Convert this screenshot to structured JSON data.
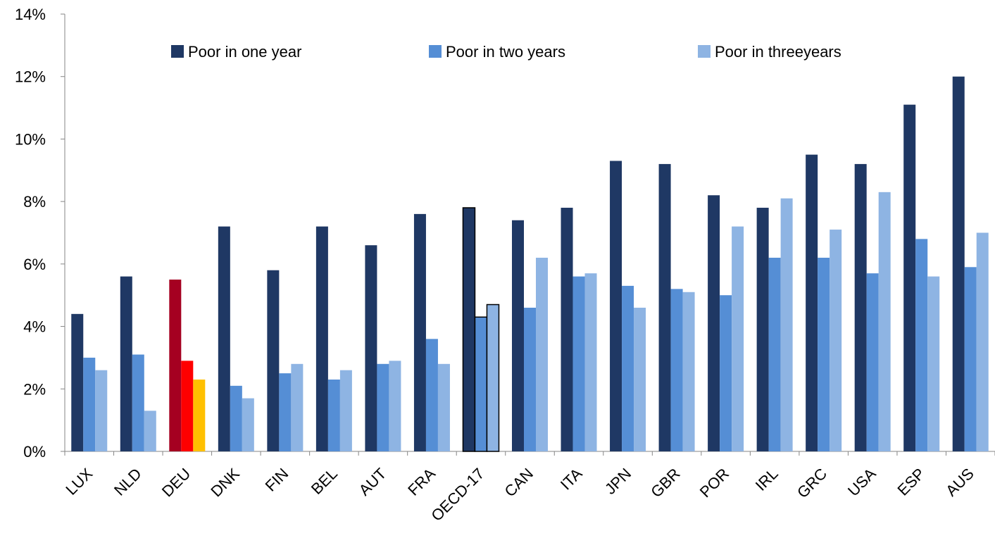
{
  "chart_data": {
    "type": "bar",
    "title": "",
    "xlabel": "",
    "ylabel": "",
    "ylim": [
      0,
      14
    ],
    "y_ticks": [
      "0%",
      "2%",
      "4%",
      "6%",
      "8%",
      "10%",
      "12%",
      "14%"
    ],
    "grid": false,
    "legend_position": "top",
    "categories": [
      "LUX",
      "NLD",
      "DEU",
      "DNK",
      "FIN",
      "BEL",
      "AUT",
      "FRA",
      "OECD-17",
      "CAN",
      "ITA",
      "JPN",
      "GBR",
      "POR",
      "IRL",
      "GRC",
      "USA",
      "ESP",
      "AUS"
    ],
    "series": [
      {
        "name": "Poor in one year",
        "color": "#1f3864",
        "values": [
          4.4,
          5.6,
          5.5,
          7.2,
          5.8,
          7.2,
          6.6,
          7.6,
          7.8,
          7.4,
          7.8,
          9.3,
          9.2,
          8.2,
          7.8,
          9.5,
          9.2,
          11.1,
          12.0
        ]
      },
      {
        "name": "Poor in two years",
        "color": "#558ed5",
        "values": [
          3.0,
          3.1,
          2.9,
          2.1,
          2.5,
          2.3,
          2.8,
          3.6,
          4.3,
          4.6,
          5.6,
          5.3,
          5.2,
          5.0,
          6.2,
          6.2,
          5.7,
          6.8,
          5.9
        ]
      },
      {
        "name": "Poor in threeyears",
        "color": "#8eb4e3",
        "values": [
          2.6,
          1.3,
          2.3,
          1.7,
          2.8,
          2.6,
          2.9,
          2.8,
          4.7,
          6.2,
          5.7,
          4.6,
          5.1,
          7.2,
          8.1,
          7.1,
          8.3,
          5.6,
          7.0
        ]
      }
    ],
    "highlight": {
      "DEU": {
        "colors": [
          "#a50021",
          "#ff0000",
          "#ffc000"
        ]
      },
      "OECD-17": {
        "outline": "#000000"
      }
    }
  }
}
